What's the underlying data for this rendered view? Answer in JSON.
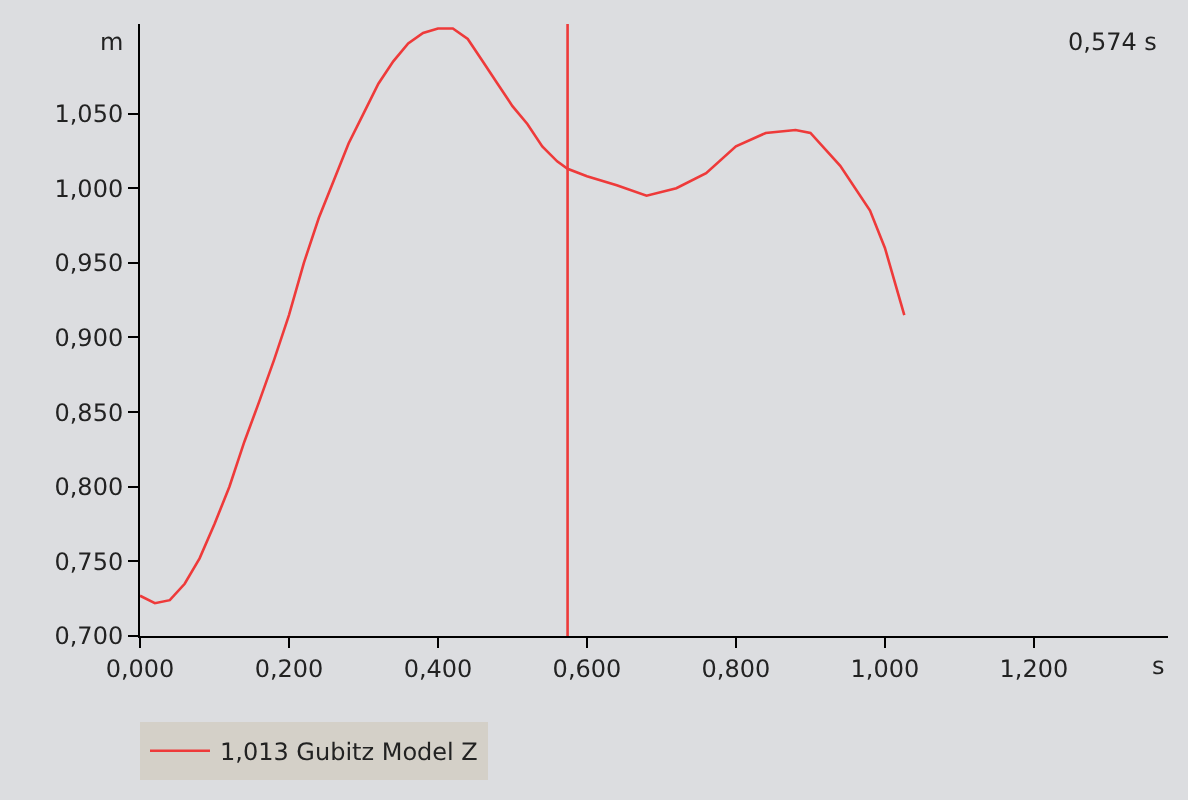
{
  "chart_data": {
    "type": "line",
    "xlabel": "s",
    "ylabel": "m",
    "annotations": [
      "0,574 s"
    ],
    "xlim": [
      0,
      1.38
    ],
    "ylim": [
      0.7,
      1.11
    ],
    "xticks": [
      {
        "value": 0,
        "label": "0,000"
      },
      {
        "value": 0.2,
        "label": "0,200"
      },
      {
        "value": 0.4,
        "label": "0,400"
      },
      {
        "value": 0.6,
        "label": "0,600"
      },
      {
        "value": 0.8,
        "label": "0,800"
      },
      {
        "value": 1.0,
        "label": "1,000"
      },
      {
        "value": 1.2,
        "label": "1,200"
      }
    ],
    "yticks": [
      {
        "value": 0.7,
        "label": "0,700"
      },
      {
        "value": 0.75,
        "label": "0,750"
      },
      {
        "value": 0.8,
        "label": "0,800"
      },
      {
        "value": 0.85,
        "label": "0,850"
      },
      {
        "value": 0.9,
        "label": "0,900"
      },
      {
        "value": 0.95,
        "label": "0,950"
      },
      {
        "value": 1.0,
        "label": "1,000"
      },
      {
        "value": 1.05,
        "label": "1,050"
      }
    ],
    "x": [
      0,
      0.02,
      0.04,
      0.06,
      0.08,
      0.1,
      0.12,
      0.14,
      0.16,
      0.18,
      0.2,
      0.22,
      0.24,
      0.26,
      0.28,
      0.3,
      0.32,
      0.34,
      0.36,
      0.38,
      0.4,
      0.42,
      0.44,
      0.46,
      0.48,
      0.5,
      0.52,
      0.54,
      0.56,
      0.574,
      0.6,
      0.64,
      0.68,
      0.72,
      0.76,
      0.8,
      0.84,
      0.88,
      0.9,
      0.94,
      0.98,
      1.0,
      1.026
    ],
    "series": [
      {
        "name": "1,013 Gubitz Model Z",
        "color": "#ee3a3a",
        "values": [
          0.727,
          0.722,
          0.724,
          0.735,
          0.752,
          0.775,
          0.8,
          0.83,
          0.857,
          0.885,
          0.915,
          0.95,
          0.98,
          1.005,
          1.03,
          1.05,
          1.07,
          1.085,
          1.097,
          1.104,
          1.107,
          1.107,
          1.1,
          1.085,
          1.07,
          1.055,
          1.043,
          1.028,
          1.018,
          1.013,
          1.008,
          1.002,
          0.995,
          1.0,
          1.01,
          1.028,
          1.037,
          1.039,
          1.037,
          1.015,
          0.985,
          0.96,
          0.915
        ]
      }
    ],
    "ref_lines": [
      {
        "axis": "x",
        "value": 0.574,
        "color": "#ee3a3a"
      }
    ],
    "legend": "bottom left",
    "grid": false,
    "marker": "none",
    "line_style": "solid"
  }
}
